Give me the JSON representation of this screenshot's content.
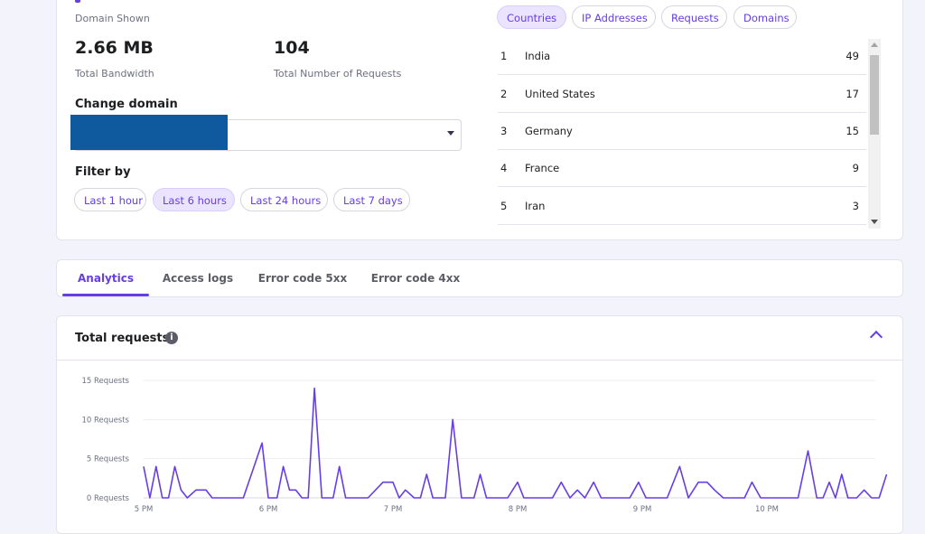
{
  "summary": {
    "domain_shown_label": "Domain Shown",
    "bandwidth_value": "2.66 MB",
    "bandwidth_label": "Total Bandwidth",
    "requests_value": "104",
    "requests_label": "Total Number of Requests"
  },
  "change_domain": {
    "label": "Change domain",
    "value": ""
  },
  "filter": {
    "label": "Filter by",
    "options": [
      "Last 1 hour",
      "Last 6 hours",
      "Last 24 hours",
      "Last 7 days"
    ],
    "selected": "Last 6 hours"
  },
  "breakdown": {
    "tabs": [
      "Countries",
      "IP Addresses",
      "Requests",
      "Domains"
    ],
    "selected": "Countries",
    "rows": [
      {
        "rank": "1",
        "name": "India",
        "count": "49"
      },
      {
        "rank": "2",
        "name": "United States",
        "count": "17"
      },
      {
        "rank": "3",
        "name": "Germany",
        "count": "15"
      },
      {
        "rank": "4",
        "name": "France",
        "count": "9"
      },
      {
        "rank": "5",
        "name": "Iran",
        "count": "3"
      }
    ]
  },
  "main_tabs": [
    "Analytics",
    "Access logs",
    "Error code 5xx",
    "Error code 4xx"
  ],
  "main_tab_selected": "Analytics",
  "chart_panel": {
    "title": "Total requests",
    "info_icon": "info-icon",
    "collapse_icon": "chevron-up-icon"
  },
  "colors": {
    "accent": "#673de6",
    "accent_light": "#ebe4ff",
    "redaction": "#0f5a9e"
  },
  "chart_data": {
    "type": "line",
    "title": "Total requests",
    "xlabel": "",
    "ylabel": "",
    "y_ticks": [
      "0 Requests",
      "5 Requests",
      "10 Requests",
      "15 Requests"
    ],
    "x_ticks": [
      "5 PM",
      "6 PM",
      "7 PM",
      "8 PM",
      "9 PM",
      "10 PM"
    ],
    "ylim": [
      0,
      15
    ],
    "grid": true,
    "series": [
      {
        "points": [
          [
            0.0,
            4
          ],
          [
            0.05,
            0
          ],
          [
            0.1,
            4
          ],
          [
            0.15,
            0
          ],
          [
            0.2,
            0
          ],
          [
            0.25,
            4
          ],
          [
            0.3,
            1
          ],
          [
            0.35,
            0
          ],
          [
            0.42,
            1
          ],
          [
            0.5,
            1
          ],
          [
            0.55,
            0
          ],
          [
            0.7,
            0
          ],
          [
            0.8,
            0
          ],
          [
            0.95,
            7
          ],
          [
            1.0,
            0
          ],
          [
            1.07,
            0
          ],
          [
            1.12,
            4
          ],
          [
            1.17,
            1
          ],
          [
            1.22,
            1
          ],
          [
            1.27,
            0
          ],
          [
            1.32,
            0
          ],
          [
            1.37,
            14
          ],
          [
            1.43,
            0
          ],
          [
            1.52,
            0
          ],
          [
            1.57,
            4
          ],
          [
            1.62,
            0
          ],
          [
            1.8,
            0
          ],
          [
            1.92,
            2
          ],
          [
            2.0,
            2
          ],
          [
            2.05,
            0
          ],
          [
            2.1,
            1
          ],
          [
            2.17,
            0
          ],
          [
            2.22,
            0
          ],
          [
            2.27,
            3
          ],
          [
            2.32,
            0
          ],
          [
            2.42,
            0
          ],
          [
            2.48,
            10
          ],
          [
            2.55,
            0
          ],
          [
            2.65,
            0
          ],
          [
            2.7,
            3
          ],
          [
            2.75,
            0
          ],
          [
            2.92,
            0
          ],
          [
            3.0,
            2
          ],
          [
            3.05,
            0
          ],
          [
            3.28,
            0
          ],
          [
            3.35,
            2
          ],
          [
            3.42,
            0
          ],
          [
            3.48,
            1
          ],
          [
            3.54,
            0
          ],
          [
            3.61,
            2
          ],
          [
            3.67,
            0
          ],
          [
            3.9,
            0
          ],
          [
            3.97,
            2
          ],
          [
            4.03,
            0
          ],
          [
            4.2,
            0
          ],
          [
            4.3,
            4
          ],
          [
            4.37,
            0
          ],
          [
            4.45,
            2
          ],
          [
            4.52,
            2
          ],
          [
            4.58,
            1
          ],
          [
            4.65,
            0
          ],
          [
            4.82,
            0
          ],
          [
            4.88,
            2
          ],
          [
            4.95,
            0
          ],
          [
            5.25,
            0
          ],
          [
            5.33,
            6
          ],
          [
            5.4,
            0
          ],
          [
            5.45,
            0
          ],
          [
            5.5,
            2
          ],
          [
            5.55,
            0
          ],
          [
            5.6,
            3
          ],
          [
            5.65,
            0
          ],
          [
            5.72,
            0
          ],
          [
            5.78,
            1
          ],
          [
            5.84,
            0
          ],
          [
            5.9,
            0
          ],
          [
            5.96,
            3
          ]
        ]
      }
    ]
  }
}
